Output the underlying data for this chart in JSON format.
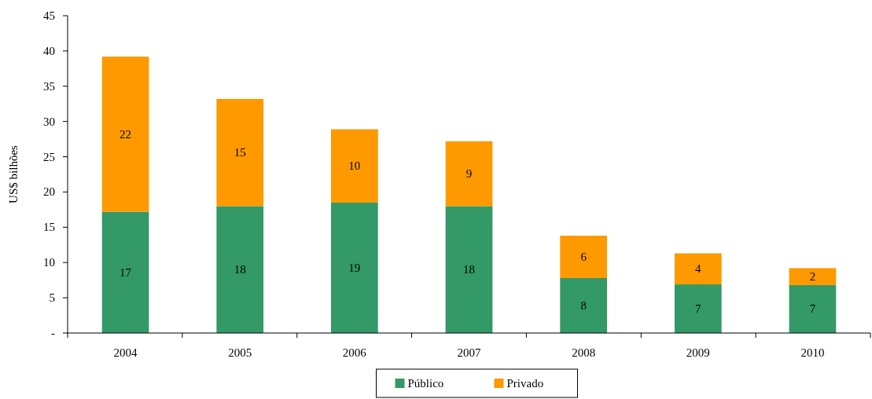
{
  "chart_data": {
    "type": "bar",
    "stacked": true,
    "ylabel": "US$ bilhões",
    "categories": [
      "2004",
      "2005",
      "2006",
      "2007",
      "2008",
      "2009",
      "2010"
    ],
    "series": [
      {
        "name": "Público",
        "color": "#339966",
        "values": [
          17.2,
          18.0,
          18.5,
          18.0,
          7.8,
          6.9,
          6.8
        ],
        "value_labels": [
          "17",
          "18",
          "19",
          "18",
          "8",
          "7",
          "7"
        ]
      },
      {
        "name": "Privado",
        "color": "#ff9900",
        "values": [
          22.0,
          15.2,
          10.4,
          9.2,
          6.0,
          4.4,
          2.4
        ],
        "value_labels": [
          "22",
          "15",
          "10",
          "9",
          "6",
          "4",
          "2"
        ]
      }
    ],
    "ylim": [
      0,
      45
    ],
    "yticks": [
      {
        "value": 0,
        "label": "-"
      },
      5,
      10,
      15,
      20,
      25,
      30,
      35,
      40,
      45
    ],
    "legend": "bottom"
  }
}
